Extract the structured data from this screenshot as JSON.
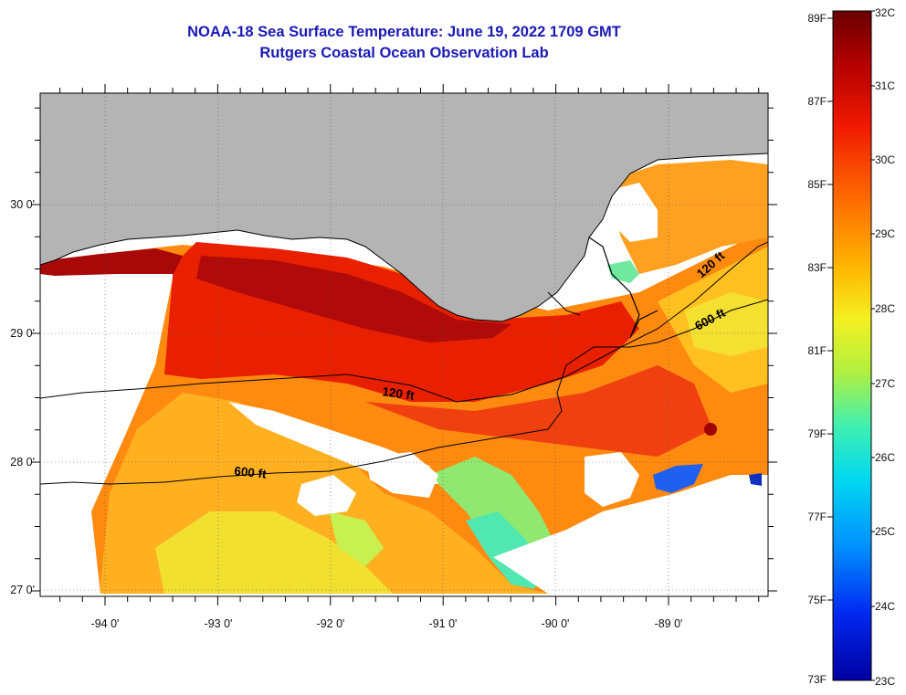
{
  "title": {
    "line1": "NOAA-18 Sea Surface Temperature:  June 19, 2022 1709 GMT",
    "line2": "Rutgers Coastal Ocean Observation Lab"
  },
  "axes": {
    "lon_labels": [
      "-94 0'",
      "-93 0'",
      "-92 0'",
      "-91 0'",
      "-90 0'",
      "-89 0'"
    ],
    "lat_labels": [
      "30 0'",
      "29 0'",
      "28 0'",
      "27 0'"
    ]
  },
  "contours": {
    "label_120_west": "120 ft",
    "label_120_east": "120 ft",
    "label_600_west": "600 ft",
    "label_600_east": "600 ft"
  },
  "colorbar": {
    "fahrenheit": [
      "89F",
      "87F",
      "85F",
      "83F",
      "81F",
      "79F",
      "77F",
      "75F",
      "73F"
    ],
    "celsius": [
      "32C",
      "31C",
      "30C",
      "29C",
      "28C",
      "27C",
      "26C",
      "25C",
      "24C",
      "23C"
    ],
    "colors_top_to_bottom": [
      "#7a0000",
      "#c80000",
      "#ff2a00",
      "#ff7a00",
      "#ffc000",
      "#f0f020",
      "#a8f040",
      "#30f0c0",
      "#00d8f0",
      "#0090ff",
      "#0030ff",
      "#0000b0"
    ]
  },
  "colors": {
    "land": "#b4b4b4",
    "title": "#1a1ab4"
  }
}
